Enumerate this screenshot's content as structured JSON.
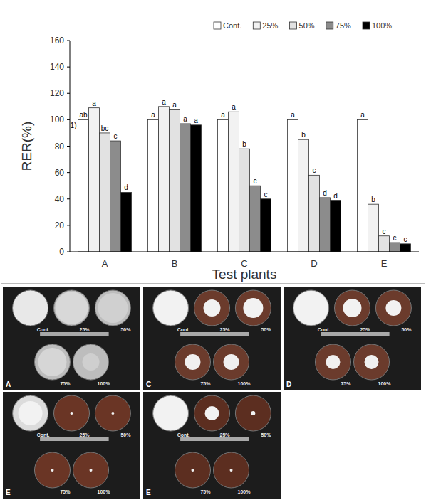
{
  "chart_data": {
    "type": "bar",
    "x_label": "Test plants",
    "y_label": "RER(%)",
    "categories": [
      "A",
      "B",
      "C",
      "D",
      "E"
    ],
    "series": [
      {
        "name": "Cont.",
        "color": "#ffffff",
        "values": [
          100,
          100,
          100,
          100,
          100
        ],
        "letters": [
          "ab",
          "a",
          "a",
          "a",
          "a"
        ]
      },
      {
        "name": "25%",
        "color": "#f2f2f2",
        "values": [
          109,
          110,
          106,
          85,
          36
        ],
        "letters": [
          "a",
          "a",
          "a",
          "b",
          "b"
        ]
      },
      {
        "name": "50%",
        "color": "#e2e2e2",
        "values": [
          90,
          108,
          78,
          58,
          12
        ],
        "letters": [
          "bc",
          "a",
          "b",
          "c",
          "c"
        ]
      },
      {
        "name": "75%",
        "color": "#8c8c8c",
        "values": [
          84,
          97,
          50,
          41,
          7
        ],
        "letters": [
          "c",
          "a",
          "c",
          "d",
          "c"
        ]
      },
      {
        "name": "100%",
        "color": "#000000",
        "values": [
          45,
          96,
          40,
          39,
          6
        ],
        "letters": [
          "d",
          "a",
          "c",
          "d",
          "c"
        ]
      }
    ],
    "annotations": [
      {
        "text": "1)",
        "series": 0,
        "category": 0
      }
    ],
    "ylim": [
      0,
      160
    ],
    "yticks": [
      0,
      20,
      40,
      60,
      80,
      100,
      120,
      140,
      160
    ],
    "grid": false,
    "legend": "top-right"
  },
  "photo_panels": [
    {
      "label": "A",
      "dishes": [
        "Cont.",
        "25%",
        "50%",
        "75%",
        "100%"
      ]
    },
    {
      "label": "C",
      "dishes": [
        "Cont.",
        "25%",
        "50%",
        "75%",
        "100%"
      ]
    },
    {
      "label": "D",
      "dishes": [
        "Cont.",
        "25%",
        "50%",
        "75%",
        "100%"
      ]
    },
    {
      "label": "E",
      "dishes": [
        "Cont.",
        "25%",
        "50%",
        "75%",
        "100%"
      ]
    },
    {
      "label": "E",
      "dishes": [
        "Cont.",
        "25%",
        "50%",
        "75%",
        "100%"
      ]
    }
  ]
}
